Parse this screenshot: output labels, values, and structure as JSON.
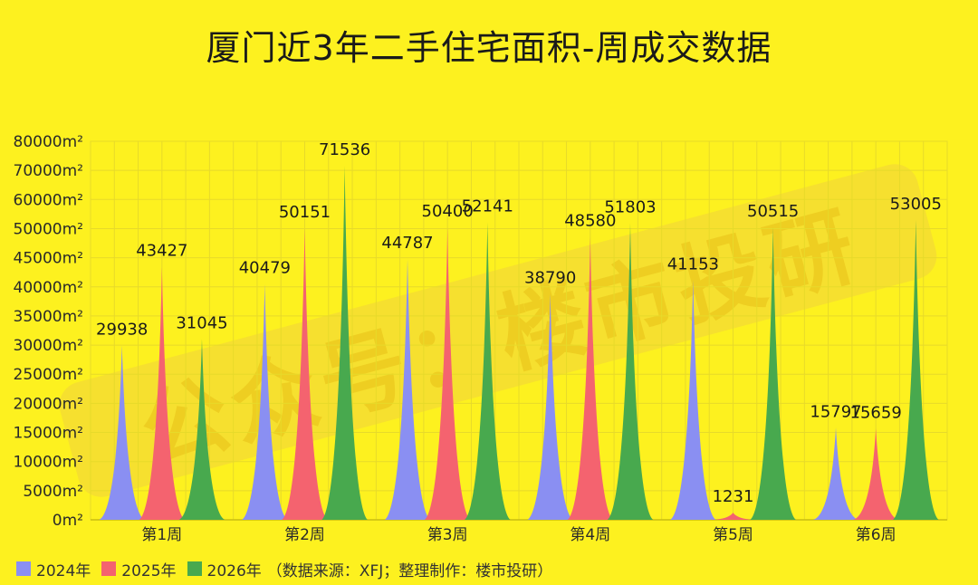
{
  "title": "厦门近3年二手住宅面积-周成交数据",
  "watermark": "公众号：楼市投研",
  "legend": {
    "source_note": "（数据来源：XFJ；整理制作：楼市投研）"
  },
  "chart_data": {
    "type": "area",
    "title": "厦门近3年二手住宅面积-周成交数据",
    "categories": [
      "第1周",
      "第2周",
      "第3周",
      "第4周",
      "第5周",
      "第6周"
    ],
    "series": [
      {
        "name": "2024年",
        "color": "#8a8ff2",
        "values": [
          29938,
          40479,
          44787,
          38790,
          41153,
          15797
        ]
      },
      {
        "name": "2025年",
        "color": "#f4636f",
        "values": [
          43427,
          50151,
          50400,
          48580,
          1231,
          15659
        ]
      },
      {
        "name": "2026年",
        "color": "#48a94e",
        "values": [
          31045,
          71536,
          52141,
          51803,
          50515,
          53005
        ]
      }
    ],
    "yticks": [
      "0m²",
      "5000m²",
      "10000m²",
      "15000m²",
      "20000m²",
      "25000m²",
      "30000m²",
      "35000m²",
      "40000m²",
      "45000m²",
      "50000m²",
      "60000m²",
      "70000m²",
      "80000m²"
    ],
    "yunit": "m²",
    "grid": true,
    "legend_position": "bottom-left"
  }
}
